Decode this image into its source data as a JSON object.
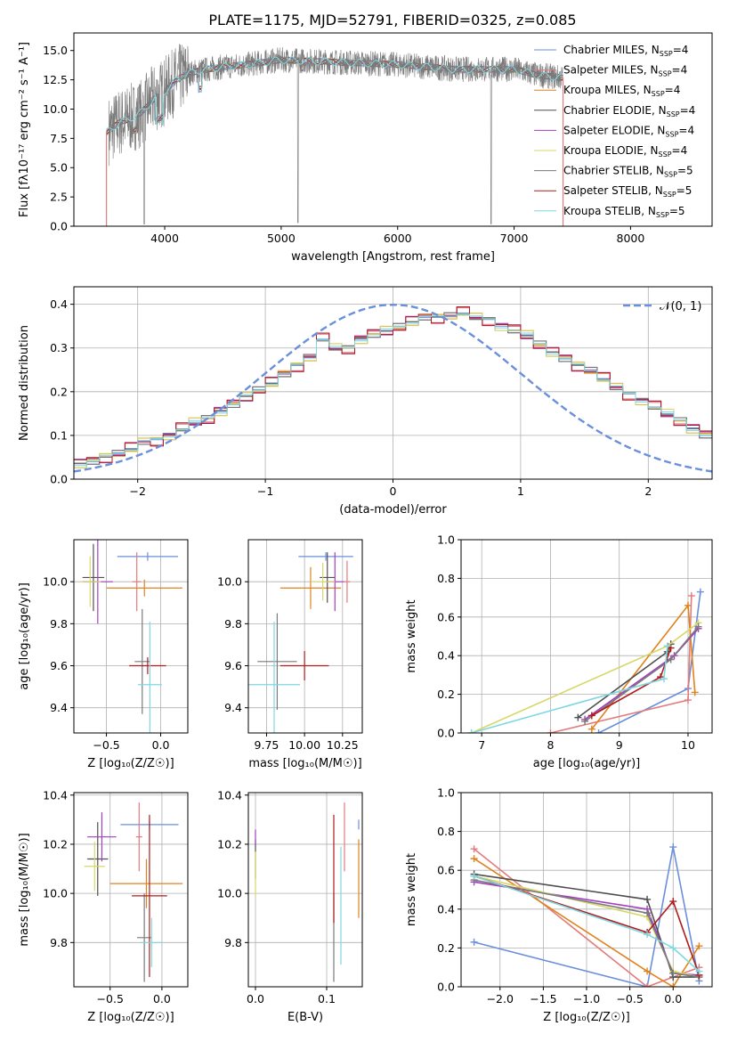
{
  "title": "PLATE=1175, MJD=52791, FIBERID=0325, z=0.085",
  "colors": [
    "#6a8fdc",
    "#e37b7b",
    "#e0821e",
    "#4f4f4f",
    "#a33fbf",
    "#d7d76a",
    "#7a7a7a",
    "#b01c1c",
    "#7fd7e0"
  ],
  "chart_data": [
    {
      "id": "spectrum",
      "type": "line",
      "title": "PLATE=1175, MJD=52791, FIBERID=0325, z=0.085",
      "xlabel": "wavelength [Angstrom, rest frame]",
      "ylabel": "Flux [fλ10⁻¹⁷ erg cm⁻² s⁻¹ A⁻¹]",
      "xlim": [
        3220,
        8700
      ],
      "ylim": [
        0,
        16.5
      ],
      "xticks": [
        "4000",
        "5000",
        "6000",
        "7000",
        "8000"
      ],
      "yticks": [
        "0.0",
        "2.5",
        "5.0",
        "7.5",
        "10.0",
        "12.5",
        "15.0"
      ],
      "legend_position": "right",
      "legend": [
        "Chabrier MILES, N_SSP=4",
        "Salpeter MILES, N_SSP=4",
        "Kroupa MILES, N_SSP=4",
        "Chabrier ELODIE, N_SSP=4",
        "Salpeter ELODIE, N_SSP=4",
        "Kroupa ELODIE, N_SSP=4",
        "Chabrier STELIB, N_SSP=5",
        "Salpeter STELIB, N_SSP=5",
        "Kroupa STELIB, N_SSP=5"
      ],
      "continuum": {
        "x": [
          3500,
          3600,
          3700,
          3800,
          3900,
          4000,
          4100,
          4200,
          4300,
          4500,
          4700,
          5000,
          5500,
          6000,
          6500,
          7000,
          7200,
          7400
        ],
        "y": [
          8.0,
          8.8,
          9.2,
          9.7,
          10.8,
          11.5,
          12.5,
          13.0,
          13.3,
          13.6,
          13.8,
          14.2,
          14.0,
          13.8,
          13.4,
          13.4,
          12.9,
          12.7
        ]
      }
    },
    {
      "id": "residuals",
      "type": "step",
      "xlabel": "(data-model)/error",
      "ylabel": "Normed distribution",
      "xlim": [
        -2.5,
        2.5
      ],
      "ylim": [
        0,
        0.44
      ],
      "xticks": [
        "−2",
        "−1",
        "0",
        "1",
        "2"
      ],
      "yticks": [
        "0.0",
        "0.1",
        "0.2",
        "0.3",
        "0.4"
      ],
      "legend": [
        "𝒩(0, 1)"
      ],
      "bin_width": 0.1,
      "bins_start": -2.5,
      "hist": [
        0.035,
        0.04,
        0.05,
        0.06,
        0.07,
        0.085,
        0.09,
        0.1,
        0.115,
        0.13,
        0.14,
        0.155,
        0.17,
        0.19,
        0.205,
        0.22,
        0.24,
        0.26,
        0.28,
        0.32,
        0.3,
        0.3,
        0.32,
        0.33,
        0.34,
        0.35,
        0.36,
        0.37,
        0.37,
        0.375,
        0.38,
        0.37,
        0.365,
        0.35,
        0.34,
        0.33,
        0.31,
        0.29,
        0.275,
        0.26,
        0.25,
        0.23,
        0.21,
        0.195,
        0.18,
        0.165,
        0.15,
        0.135,
        0.115,
        0.1,
        0.09,
        0.075,
        0.065,
        0.055,
        0.045,
        0.04,
        0.035,
        0.03
      ],
      "series_jitter": [
        0,
        0.012,
        -0.01,
        0.006,
        -0.014,
        0.01,
        -0.006,
        0.014,
        -0.004
      ]
    },
    {
      "id": "age_vs_Z",
      "type": "errorbar",
      "xlabel": "Z [log₁₀(Z/Z☉)]",
      "ylabel": "age  [log₁₀(age/yr)]",
      "xlim": [
        -0.8,
        0.25
      ],
      "ylim": [
        9.28,
        10.2
      ],
      "xticks": [
        "−0.5",
        "0.0"
      ],
      "xtick_values": [
        -0.5,
        0.0
      ],
      "yticks": [
        "9.4",
        "9.6",
        "9.8",
        "10.0"
      ],
      "ytick_values": [
        9.4,
        9.6,
        9.8,
        10.0
      ],
      "points": [
        {
          "x": -0.12,
          "xerr": 0.28,
          "y": 10.12,
          "yerr": 0.02
        },
        {
          "x": -0.22,
          "xerr": 0.04,
          "y": 10.0,
          "yerr": 0.14
        },
        {
          "x": -0.15,
          "xerr": 0.35,
          "y": 9.97,
          "yerr": 0.04
        },
        {
          "x": -0.62,
          "xerr": 0.1,
          "y": 10.02,
          "yerr": 0.16
        },
        {
          "x": -0.58,
          "xerr": 0.14,
          "y": 10.0,
          "yerr": 0.2
        },
        {
          "x": -0.65,
          "xerr": 0.1,
          "y": 10.0,
          "yerr": 0.12
        },
        {
          "x": -0.17,
          "xerr": 0.07,
          "y": 9.62,
          "yerr": 0.25
        },
        {
          "x": -0.12,
          "xerr": 0.17,
          "y": 9.6,
          "yerr": 0.04
        },
        {
          "x": -0.1,
          "xerr": 0.11,
          "y": 9.51,
          "yerr": 0.3
        }
      ]
    },
    {
      "id": "age_vs_mass",
      "type": "errorbar",
      "xlabel": "mass [log₁₀(M/M☉)]",
      "xlim": [
        9.63,
        10.38
      ],
      "ylim": [
        9.28,
        10.2
      ],
      "xticks": [
        "9.75",
        "10.00",
        "10.25"
      ],
      "xtick_values": [
        9.75,
        10.0,
        10.25
      ],
      "yticks": [
        "9.4",
        "9.6",
        "9.8",
        "10.0"
      ],
      "ytick_values": [
        9.4,
        9.6,
        9.8,
        10.0
      ],
      "points": [
        {
          "x": 10.14,
          "xerr": 0.18,
          "y": 10.12,
          "yerr": 0.02
        },
        {
          "x": 10.28,
          "xerr": 0.02,
          "y": 10.0,
          "yerr": 0.1
        },
        {
          "x": 10.04,
          "xerr": 0.2,
          "y": 9.97,
          "yerr": 0.1
        },
        {
          "x": 10.15,
          "xerr": 0.05,
          "y": 10.02,
          "yerr": 0.12
        },
        {
          "x": 10.2,
          "xerr": 0.06,
          "y": 10.0,
          "yerr": 0.14
        },
        {
          "x": 10.12,
          "xerr": 0.08,
          "y": 10.0,
          "yerr": 0.09
        },
        {
          "x": 9.82,
          "xerr": 0.13,
          "y": 9.62,
          "yerr": 0.23
        },
        {
          "x": 10.0,
          "xerr": 0.16,
          "y": 9.6,
          "yerr": 0.07
        },
        {
          "x": 9.8,
          "xerr": 0.17,
          "y": 9.51,
          "yerr": 0.3
        }
      ]
    },
    {
      "id": "weight_vs_age",
      "type": "line",
      "xlabel": "age  [log₁₀(age/yr)]",
      "ylabel": "mass weight",
      "xlim": [
        6.7,
        10.35
      ],
      "ylim": [
        0,
        1.0
      ],
      "xticks": [
        "7",
        "8",
        "9",
        "10"
      ],
      "xtick_values": [
        7,
        8,
        9,
        10
      ],
      "yticks": [
        "0.0",
        "0.2",
        "0.4",
        "0.6",
        "0.8",
        "1.0"
      ],
      "ytick_values": [
        0,
        0.2,
        0.4,
        0.6,
        0.8,
        1.0
      ],
      "series": [
        {
          "x": [
            8.7,
            10.0,
            10.18
          ],
          "y": [
            0.0,
            0.23,
            0.73
          ]
        },
        {
          "x": [
            8.0,
            10.0,
            10.05
          ],
          "y": [
            0.0,
            0.17,
            0.71
          ]
        },
        {
          "x": [
            8.6,
            10.0,
            10.1
          ],
          "y": [
            0.02,
            0.66,
            0.21
          ]
        },
        {
          "x": [
            8.4,
            9.7,
            9.75
          ],
          "y": [
            0.08,
            0.42,
            0.46
          ]
        },
        {
          "x": [
            8.5,
            9.8,
            10.15
          ],
          "y": [
            0.07,
            0.4,
            0.54
          ]
        },
        {
          "x": [
            6.85,
            9.7,
            10.15
          ],
          "y": [
            0.0,
            0.45,
            0.57
          ]
        },
        {
          "x": [
            8.5,
            9.75,
            10.15
          ],
          "y": [
            0.06,
            0.38,
            0.55
          ]
        },
        {
          "x": [
            8.6,
            9.6,
            9.75
          ],
          "y": [
            0.09,
            0.29,
            0.44
          ]
        },
        {
          "x": [
            6.85,
            9.65,
            9.7
          ],
          "y": [
            0.0,
            0.28,
            0.45
          ]
        }
      ]
    },
    {
      "id": "mass_vs_Z",
      "type": "errorbar",
      "xlabel": "Z [log₁₀(Z/Z☉)]",
      "ylabel": "mass [log₁₀(M/M☉)]",
      "xlim": [
        -0.85,
        0.25
      ],
      "ylim": [
        9.62,
        10.41
      ],
      "xticks": [
        "−0.5",
        "0.0"
      ],
      "xtick_values": [
        -0.5,
        0.0
      ],
      "yticks": [
        "9.8",
        "10.0",
        "10.2",
        "10.4"
      ],
      "ytick_values": [
        9.8,
        10.0,
        10.2,
        10.4
      ],
      "points": [
        {
          "x": -0.12,
          "xerr": 0.28,
          "y": 10.28,
          "yerr": 0.02
        },
        {
          "x": -0.22,
          "xerr": 0.03,
          "y": 10.23,
          "yerr": 0.14
        },
        {
          "x": -0.15,
          "xerr": 0.35,
          "y": 10.04,
          "yerr": 0.1
        },
        {
          "x": -0.62,
          "xerr": 0.1,
          "y": 10.14,
          "yerr": 0.15
        },
        {
          "x": -0.58,
          "xerr": 0.14,
          "y": 10.23,
          "yerr": 0.1
        },
        {
          "x": -0.65,
          "xerr": 0.1,
          "y": 10.11,
          "yerr": 0.1
        },
        {
          "x": -0.17,
          "xerr": 0.07,
          "y": 9.82,
          "yerr": 0.18
        },
        {
          "x": -0.12,
          "xerr": 0.17,
          "y": 9.99,
          "yerr": 0.33
        },
        {
          "x": -0.1,
          "xerr": 0.11,
          "y": 9.8,
          "yerr": 0.1
        }
      ]
    },
    {
      "id": "mass_vs_ebv",
      "type": "errorbar",
      "xlabel": "E(B-V)",
      "xlim": [
        -0.01,
        0.15
      ],
      "ylim": [
        9.62,
        10.41
      ],
      "xticks": [
        "0.0",
        "0.1"
      ],
      "xtick_values": [
        0.0,
        0.1
      ],
      "yticks": [
        "9.8",
        "10.0",
        "10.2",
        "10.4"
      ],
      "ytick_values": [
        9.8,
        10.0,
        10.2,
        10.4
      ],
      "points": [
        {
          "x": 0.145,
          "xerr": 0,
          "y": 10.28,
          "yerr": 0.02
        },
        {
          "x": 0.125,
          "xerr": 0,
          "y": 10.23,
          "yerr": 0.14
        },
        {
          "x": 0.145,
          "xerr": 0,
          "y": 10.06,
          "yerr": 0.16
        },
        {
          "x": 0.0,
          "xerr": 0,
          "y": 10.14,
          "yerr": 0.08
        },
        {
          "x": 0.0,
          "xerr": 0,
          "y": 10.23,
          "yerr": 0.03
        },
        {
          "x": 0.0,
          "xerr": 0,
          "y": 10.08,
          "yerr": 0.09
        },
        {
          "x": 0.11,
          "xerr": 0,
          "y": 9.82,
          "yerr": 0.18
        },
        {
          "x": 0.11,
          "xerr": 0,
          "y": 10.1,
          "yerr": 0.22
        },
        {
          "x": 0.12,
          "xerr": 0,
          "y": 9.95,
          "yerr": 0.24
        }
      ]
    },
    {
      "id": "weight_vs_Z",
      "type": "line",
      "xlabel": "Z [log₁₀(Z/Z☉)]",
      "ylabel": "mass weight",
      "xlim": [
        -2.45,
        0.45
      ],
      "ylim": [
        0,
        1.0
      ],
      "xticks": [
        "−2.0",
        "−1.5",
        "−1.0",
        "−0.5",
        "0.0"
      ],
      "xtick_values": [
        -2.0,
        -1.5,
        -1.0,
        -0.5,
        0.0
      ],
      "yticks": [
        "0.0",
        "0.2",
        "0.4",
        "0.6",
        "0.8",
        "1.0"
      ],
      "ytick_values": [
        0,
        0.2,
        0.4,
        0.6,
        0.8,
        1.0
      ],
      "series": [
        {
          "x": [
            -2.3,
            -0.3,
            0.0,
            0.3
          ],
          "y": [
            0.23,
            0.0,
            0.72,
            0.03
          ]
        },
        {
          "x": [
            -2.3,
            -0.3,
            0.0,
            0.3
          ],
          "y": [
            0.71,
            0.0,
            0.05,
            0.1
          ]
        },
        {
          "x": [
            -2.3,
            -0.3,
            0.0,
            0.3
          ],
          "y": [
            0.66,
            0.08,
            0.0,
            0.21
          ]
        },
        {
          "x": [
            -2.3,
            -0.3,
            0.0,
            0.3
          ],
          "y": [
            0.58,
            0.45,
            0.05,
            0.05
          ]
        },
        {
          "x": [
            -2.3,
            -0.3,
            0.0,
            0.3
          ],
          "y": [
            0.54,
            0.4,
            0.07,
            0.06
          ]
        },
        {
          "x": [
            -2.3,
            -0.3,
            0.0,
            0.3
          ],
          "y": [
            0.57,
            0.36,
            0.08,
            0.05
          ]
        },
        {
          "x": [
            -2.3,
            -0.3,
            0.0,
            0.3
          ],
          "y": [
            0.55,
            0.38,
            0.07,
            0.05
          ]
        },
        {
          "x": [
            -2.3,
            -0.3,
            0.0,
            0.3
          ],
          "y": [
            0.57,
            0.28,
            0.44,
            0.06
          ]
        },
        {
          "x": [
            -2.3,
            -0.3,
            0.0,
            0.3
          ],
          "y": [
            0.57,
            0.27,
            0.2,
            0.08
          ]
        }
      ]
    }
  ]
}
